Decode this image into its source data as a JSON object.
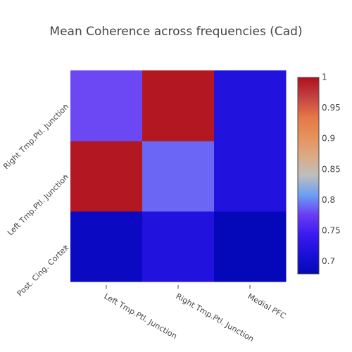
{
  "chart_data": {
    "type": "heatmap",
    "title": "Mean Coherence across frequencies (Cad)",
    "x_categories": [
      "Left Tmp.Ptl. Junction",
      "Right Tmp.Ptl. Junction",
      "Medial PFC"
    ],
    "y_categories": [
      "Post. Cing. Cortex",
      "Left Tmp.Ptl. Junction",
      "Right Tmp.Ptl. Junction"
    ],
    "y_categories_order": "bottom-to-top",
    "z": [
      [
        0.69,
        0.72,
        0.68
      ],
      [
        0.995,
        0.79,
        0.72
      ],
      [
        0.78,
        0.995,
        0.72
      ]
    ],
    "zlim": [
      0.68,
      1.0
    ],
    "colorbar_ticks": [
      "0.7",
      "0.75",
      "0.8",
      "0.85",
      "0.9",
      "0.95",
      "1"
    ],
    "colorbar_tick_values": [
      0.7,
      0.75,
      0.8,
      0.85,
      0.9,
      0.95,
      1.0
    ],
    "colorscale": [
      "#0508b8",
      "#1910d8",
      "#3c19f0",
      "#6b3cf4",
      "#6b9ef5",
      "#bebebe",
      "#dcaa84",
      "#e6915a",
      "#e57647",
      "#c34141",
      "#b0101c"
    ],
    "colorbar_position": "right"
  }
}
